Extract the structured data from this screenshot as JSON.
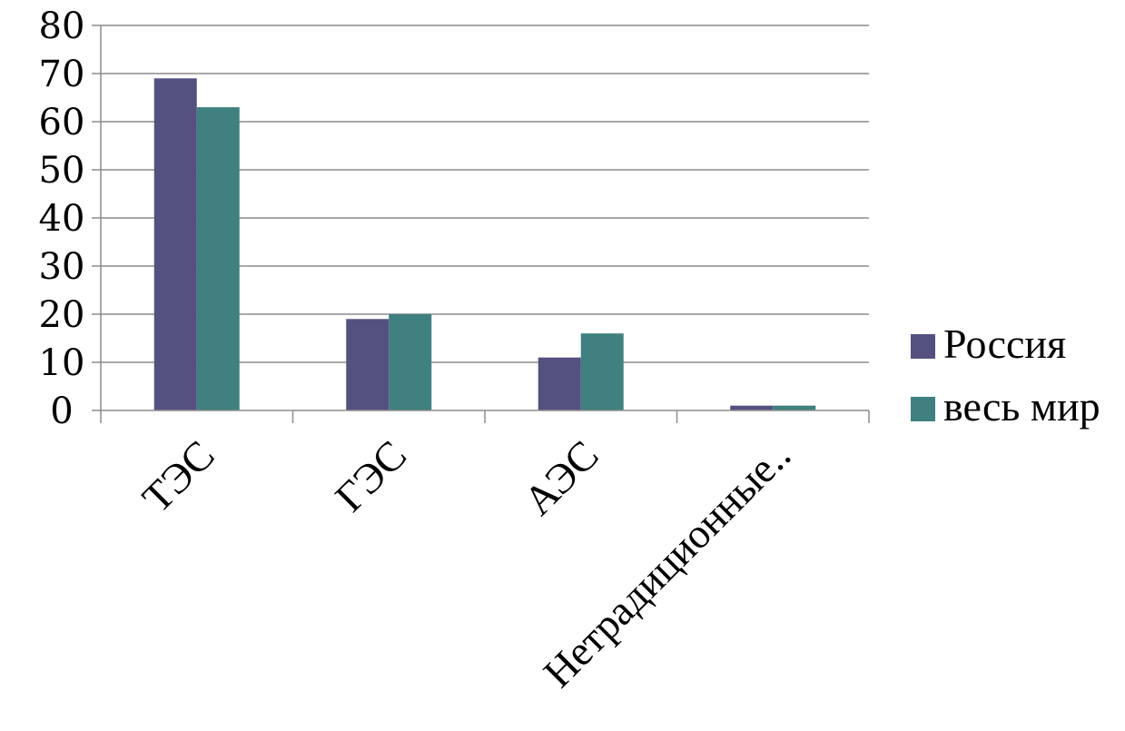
{
  "chart_data": {
    "type": "bar",
    "categories": [
      "ТЭС",
      "ГЭС",
      "АЭС",
      "Нетрадиционные.."
    ],
    "series": [
      {
        "name": "Россия",
        "values": [
          69,
          19,
          11,
          1
        ],
        "color": "#54507f"
      },
      {
        "name": "весь мир",
        "values": [
          63,
          20,
          16,
          1
        ],
        "color": "#3f8080"
      }
    ],
    "ylim": [
      0,
      80
    ],
    "yticks": [
      0,
      10,
      20,
      30,
      40,
      50,
      60,
      70,
      80
    ],
    "grid": true,
    "legend_position": "right"
  }
}
